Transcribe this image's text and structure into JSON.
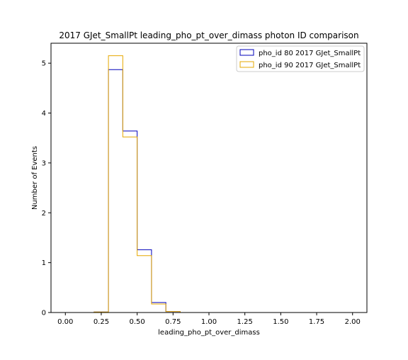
{
  "chart_data": {
    "type": "step-histogram",
    "title": "2017 GJet_SmallPt leading_pho_pt_over_dimass photon ID comparison",
    "xlabel": "leading_pho_pt_over_dimass",
    "ylabel": "Number of Events",
    "xlim": [
      -0.1,
      2.1
    ],
    "ylim": [
      0,
      5.4
    ],
    "x_ticks": [
      "0.00",
      "0.25",
      "0.50",
      "0.75",
      "1.00",
      "1.25",
      "1.50",
      "1.75",
      "2.00"
    ],
    "x_tick_values": [
      0,
      0.25,
      0.5,
      0.75,
      1.0,
      1.25,
      1.5,
      1.75,
      2.0
    ],
    "y_ticks": [
      "0",
      "1",
      "2",
      "3",
      "4",
      "5"
    ],
    "y_tick_values": [
      0,
      1,
      2,
      3,
      4,
      5
    ],
    "bin_edges": [
      0.0,
      0.1,
      0.2,
      0.3,
      0.4,
      0.5,
      0.6,
      0.7,
      0.8,
      0.9,
      1.0,
      1.1,
      1.2,
      1.3,
      1.4,
      1.5,
      1.6,
      1.7,
      1.8,
      1.9,
      2.0
    ],
    "legend_position": "top-right",
    "grid": false,
    "series": [
      {
        "name": "pho_id 80 2017 GJet_SmallPt",
        "color": "#0000bb",
        "values": [
          0,
          0,
          0.01,
          4.87,
          3.64,
          1.26,
          0.2,
          0.02,
          0,
          0,
          0,
          0,
          0,
          0,
          0,
          0,
          0,
          0,
          0,
          0
        ]
      },
      {
        "name": "pho_id 90 2017 GJet_SmallPt",
        "color": "#e6a800",
        "values": [
          0,
          0,
          0.01,
          5.15,
          3.52,
          1.14,
          0.17,
          0.02,
          0,
          0,
          0,
          0,
          0,
          0,
          0,
          0,
          0,
          0,
          0,
          0
        ]
      }
    ]
  }
}
